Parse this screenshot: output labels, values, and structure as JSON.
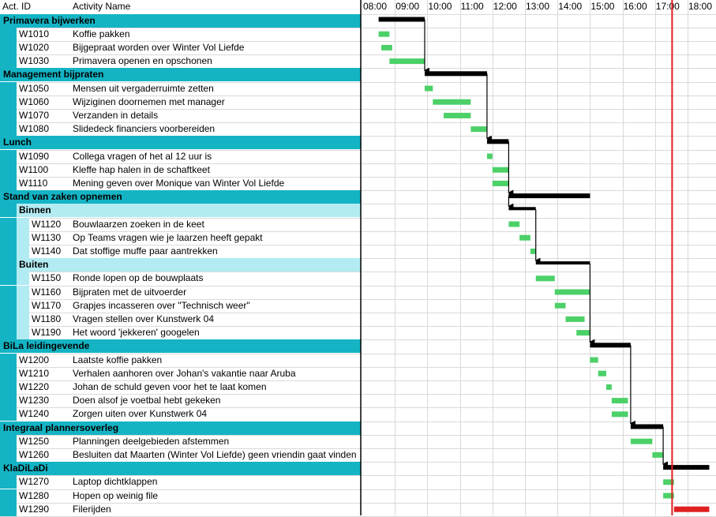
{
  "headers": {
    "id": "Act. ID",
    "name": "Activity Name"
  },
  "chart_data": {
    "type": "gantt",
    "time_ticks": [
      "08:00",
      "09:00",
      "10:00",
      "11:00",
      "12:00",
      "13:00",
      "14:00",
      "15:00",
      "16:00",
      "17:00",
      "18:00"
    ],
    "now_marker": "17:30",
    "colors": {
      "summary": "#000000",
      "task": "#4cd068",
      "group_fill": "#14b4c4",
      "subgroup_fill": "#b2ebf2",
      "now_line": "#e02020"
    },
    "rows": [
      {
        "kind": "group",
        "name": "Primavera bijwerken",
        "start": "08:30",
        "end": "09:55"
      },
      {
        "kind": "task",
        "id": "W1010",
        "name": "Koffie pakken",
        "start": "08:30",
        "end": "08:50"
      },
      {
        "kind": "task",
        "id": "W1020",
        "name": "Bijgepraat worden over Winter Vol Liefde",
        "start": "08:35",
        "end": "08:55"
      },
      {
        "kind": "task",
        "id": "W1030",
        "name": "Primavera openen en opschonen",
        "start": "08:50",
        "end": "09:55"
      },
      {
        "kind": "group",
        "name": "Management bijpraten",
        "start": "09:55",
        "end": "11:50"
      },
      {
        "kind": "task",
        "id": "W1050",
        "name": "Mensen uit vergaderruimte zetten",
        "start": "09:55",
        "end": "10:10"
      },
      {
        "kind": "task",
        "id": "W1060",
        "name": "Wijziginen doornemen met manager",
        "start": "10:10",
        "end": "11:20"
      },
      {
        "kind": "task",
        "id": "W1070",
        "name": "Verzanden in details",
        "start": "10:30",
        "end": "11:20"
      },
      {
        "kind": "task",
        "id": "W1080",
        "name": "Slidedeck financiers voorbereiden",
        "start": "11:20",
        "end": "11:50"
      },
      {
        "kind": "group",
        "name": "Lunch",
        "start": "11:50",
        "end": "12:30"
      },
      {
        "kind": "task",
        "id": "W1090",
        "name": "Collega vragen of het al 12 uur is",
        "start": "11:50",
        "end": "12:00"
      },
      {
        "kind": "task",
        "id": "W1100",
        "name": "Kleffe hap halen in de schaftkeet",
        "start": "12:00",
        "end": "12:30"
      },
      {
        "kind": "task",
        "id": "W1110",
        "name": "Mening geven over Monique van Winter Vol Liefde",
        "start": "12:00",
        "end": "12:30"
      },
      {
        "kind": "group",
        "name": "Stand van zaken opnemen",
        "start": "12:30",
        "end": "15:00"
      },
      {
        "kind": "subgroup",
        "name": "Binnen",
        "start": "12:30",
        "end": "13:20"
      },
      {
        "kind": "task",
        "id": "W1120",
        "name": "Bouwlaarzen zoeken in de keet",
        "sub": true,
        "start": "12:30",
        "end": "12:50"
      },
      {
        "kind": "task",
        "id": "W1130",
        "name": "Op Teams vragen wie je laarzen heeft gepakt",
        "sub": true,
        "start": "12:50",
        "end": "13:10"
      },
      {
        "kind": "task",
        "id": "W1140",
        "name": "Dat stoffige muffe paar aantrekken",
        "sub": true,
        "start": "13:10",
        "end": "13:20"
      },
      {
        "kind": "subgroup",
        "name": "Buiten",
        "start": "13:20",
        "end": "15:00"
      },
      {
        "kind": "task",
        "id": "W1150",
        "name": "Ronde lopen op de bouwplaats",
        "sub": true,
        "start": "13:20",
        "end": "13:55"
      },
      {
        "kind": "task",
        "id": "W1160",
        "name": "Bijpraten met de uitvoerder",
        "sub": true,
        "start": "13:55",
        "end": "15:00"
      },
      {
        "kind": "task",
        "id": "W1170",
        "name": "Grapjes incasseren over \"Technisch weer\"",
        "sub": true,
        "start": "13:55",
        "end": "14:15"
      },
      {
        "kind": "task",
        "id": "W1180",
        "name": "Vragen stellen over Kunstwerk 04",
        "sub": true,
        "start": "14:15",
        "end": "14:50"
      },
      {
        "kind": "task",
        "id": "W1190",
        "name": "Het woord 'jekkeren' googelen",
        "sub": true,
        "start": "14:35",
        "end": "15:00"
      },
      {
        "kind": "group",
        "name": "BiLa leidingevende",
        "start": "15:00",
        "end": "16:15"
      },
      {
        "kind": "task",
        "id": "W1200",
        "name": "Laatste koffie pakken",
        "start": "15:00",
        "end": "15:15"
      },
      {
        "kind": "task",
        "id": "W1210",
        "name": "Verhalen aanhoren over Johan's vakantie naar Aruba",
        "start": "15:15",
        "end": "15:30"
      },
      {
        "kind": "task",
        "id": "W1220",
        "name": "Johan de schuld geven voor het te laat komen",
        "start": "15:30",
        "end": "15:40"
      },
      {
        "kind": "task",
        "id": "W1230",
        "name": "Doen alsof je voetbal hebt gekeken",
        "start": "15:40",
        "end": "16:10"
      },
      {
        "kind": "task",
        "id": "W1240",
        "name": "Zorgen uiten over Kunstwerk 04",
        "start": "15:40",
        "end": "16:10"
      },
      {
        "kind": "group",
        "name": "Integraal plannersoverleg",
        "start": "16:15",
        "end": "17:15"
      },
      {
        "kind": "task",
        "id": "W1250",
        "name": "Planningen deelgebieden afstemmen",
        "start": "16:15",
        "end": "16:55"
      },
      {
        "kind": "task",
        "id": "W1260",
        "name": "Besluiten dat Maarten (Winter Vol Liefde) geen vriendin gaat vinden",
        "start": "16:55",
        "end": "17:15"
      },
      {
        "kind": "group",
        "name": "KlaDiLaDi",
        "start": "17:15",
        "end": "18:40"
      },
      {
        "kind": "task",
        "id": "W1270",
        "name": "Laptop dichtklappen",
        "start": "17:15",
        "end": "17:35"
      },
      {
        "kind": "task",
        "id": "W1280",
        "name": "Hopen op weinig file",
        "start": "17:15",
        "end": "17:35"
      },
      {
        "kind": "task",
        "id": "W1290",
        "name": "Filerijden",
        "start": "17:35",
        "end": "18:40",
        "color": "#e02020"
      }
    ]
  }
}
